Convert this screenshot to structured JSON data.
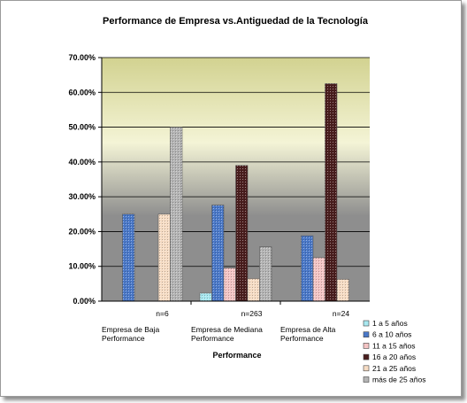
{
  "chart_data": {
    "type": "bar",
    "title": "Performance de Empresa vs.Antiguedad de la Tecnología",
    "xlabel": "Performance",
    "ylabel": "",
    "ylim": [
      0,
      70
    ],
    "yticks": [
      "0.00%",
      "10.00%",
      "20.00%",
      "30.00%",
      "40.00%",
      "50.00%",
      "60.00%",
      "70.00%"
    ],
    "categories": [
      "Empresa de Baja Performance",
      "Empresa de Mediana Performance",
      "Empresa de Alta Performance"
    ],
    "category_lines": [
      [
        "Empresa de Baja",
        "Performance"
      ],
      [
        "Empresa de Mediana",
        "Performance"
      ],
      [
        "Empresa de Alta",
        "Performance"
      ]
    ],
    "annotations": [
      "n=6",
      "n=263",
      "n=24"
    ],
    "legend_position": "bottom-right",
    "grid": true,
    "series": [
      {
        "name": "1 a 5 años",
        "color": "#a8e8f0",
        "values": [
          0,
          2.3,
          0
        ]
      },
      {
        "name": "6 a 10 años",
        "color": "#4a78c8",
        "values": [
          25.0,
          27.6,
          18.8
        ]
      },
      {
        "name": "11 a 15 años",
        "color": "#f4c4c4",
        "values": [
          0,
          9.5,
          12.5
        ]
      },
      {
        "name": "16 a 20 años",
        "color": "#4a1e1e",
        "values": [
          0,
          39.0,
          62.5
        ]
      },
      {
        "name": "21 a 25 años",
        "color": "#f6dcc4",
        "values": [
          25.0,
          6.5,
          6.3
        ]
      },
      {
        "name": "más de 25 años",
        "color": "#b4b4b4",
        "values": [
          50.0,
          15.6,
          0
        ]
      }
    ]
  }
}
